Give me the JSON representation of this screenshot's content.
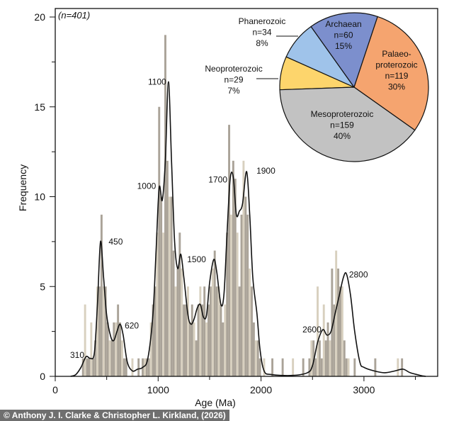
{
  "chart_data": [
    {
      "type": "bar",
      "subtype": "histogram with density curve",
      "annotation": "(n=401)",
      "xlabel": "Age (Ma)",
      "ylabel": "Frequency",
      "xlim": [
        0,
        3700
      ],
      "ylim": [
        0,
        20
      ],
      "xticks": [
        "0",
        "1000",
        "2000",
        "3000"
      ],
      "yticks": [
        "0",
        "5",
        "10",
        "15",
        "20"
      ],
      "grid": false,
      "bin_width": 20,
      "bins": [
        [
          260,
          1
        ],
        [
          280,
          4
        ],
        [
          300,
          1
        ],
        [
          320,
          1
        ],
        [
          340,
          3
        ],
        [
          360,
          1
        ],
        [
          380,
          2
        ],
        [
          400,
          5
        ],
        [
          420,
          5
        ],
        [
          440,
          9
        ],
        [
          460,
          5
        ],
        [
          480,
          5
        ],
        [
          500,
          3
        ],
        [
          520,
          2
        ],
        [
          540,
          2
        ],
        [
          560,
          3
        ],
        [
          580,
          3
        ],
        [
          600,
          4
        ],
        [
          620,
          3
        ],
        [
          640,
          2
        ],
        [
          660,
          1
        ],
        [
          680,
          1
        ],
        [
          740,
          1
        ],
        [
          800,
          1
        ],
        [
          840,
          1
        ],
        [
          860,
          1
        ],
        [
          880,
          1
        ],
        [
          900,
          1
        ],
        [
          920,
          3
        ],
        [
          940,
          4
        ],
        [
          960,
          5
        ],
        [
          980,
          8
        ],
        [
          1000,
          15
        ],
        [
          1020,
          10
        ],
        [
          1040,
          8
        ],
        [
          1060,
          19
        ],
        [
          1080,
          12
        ],
        [
          1100,
          10
        ],
        [
          1120,
          10
        ],
        [
          1140,
          7
        ],
        [
          1160,
          5
        ],
        [
          1180,
          6
        ],
        [
          1200,
          8
        ],
        [
          1220,
          6
        ],
        [
          1240,
          4
        ],
        [
          1260,
          4
        ],
        [
          1280,
          5
        ],
        [
          1300,
          3
        ],
        [
          1320,
          4
        ],
        [
          1340,
          3
        ],
        [
          1360,
          2
        ],
        [
          1380,
          4
        ],
        [
          1400,
          5
        ],
        [
          1420,
          4
        ],
        [
          1440,
          5
        ],
        [
          1460,
          3
        ],
        [
          1480,
          4
        ],
        [
          1500,
          5
        ],
        [
          1520,
          6
        ],
        [
          1540,
          7
        ],
        [
          1560,
          5
        ],
        [
          1580,
          5
        ],
        [
          1600,
          4
        ],
        [
          1620,
          3
        ],
        [
          1640,
          4
        ],
        [
          1660,
          8
        ],
        [
          1680,
          14
        ],
        [
          1700,
          9
        ],
        [
          1720,
          12
        ],
        [
          1740,
          11
        ],
        [
          1760,
          8
        ],
        [
          1780,
          5
        ],
        [
          1800,
          9
        ],
        [
          1820,
          12
        ],
        [
          1840,
          10
        ],
        [
          1860,
          9
        ],
        [
          1880,
          6
        ],
        [
          1900,
          5
        ],
        [
          1920,
          3
        ],
        [
          1940,
          2
        ],
        [
          1960,
          2
        ],
        [
          1980,
          1
        ],
        [
          2020,
          1
        ],
        [
          2100,
          1
        ],
        [
          2200,
          1
        ],
        [
          2300,
          1
        ],
        [
          2400,
          1
        ],
        [
          2460,
          1
        ],
        [
          2480,
          2
        ],
        [
          2500,
          2
        ],
        [
          2520,
          1
        ],
        [
          2540,
          5
        ],
        [
          2560,
          2
        ],
        [
          2580,
          1
        ],
        [
          2600,
          4
        ],
        [
          2620,
          2
        ],
        [
          2640,
          3
        ],
        [
          2660,
          2
        ],
        [
          2680,
          6
        ],
        [
          2700,
          4
        ],
        [
          2720,
          7
        ],
        [
          2740,
          6
        ],
        [
          2760,
          5
        ],
        [
          2780,
          5
        ],
        [
          2800,
          2
        ],
        [
          2820,
          1
        ],
        [
          2840,
          1
        ],
        [
          2900,
          1
        ],
        [
          3100,
          1
        ],
        [
          3320,
          1
        ],
        [
          3360,
          1
        ]
      ],
      "density_curve": [
        [
          150,
          0
        ],
        [
          200,
          0.1
        ],
        [
          250,
          0.5
        ],
        [
          300,
          1.1
        ],
        [
          340,
          1.0
        ],
        [
          380,
          1.3
        ],
        [
          410,
          4
        ],
        [
          440,
          7.5
        ],
        [
          470,
          5.5
        ],
        [
          500,
          3.4
        ],
        [
          540,
          2.2
        ],
        [
          570,
          2.0
        ],
        [
          600,
          2.5
        ],
        [
          630,
          2.9
        ],
        [
          660,
          2.3
        ],
        [
          700,
          0.8
        ],
        [
          750,
          0.3
        ],
        [
          800,
          0.4
        ],
        [
          850,
          0.5
        ],
        [
          900,
          1.0
        ],
        [
          950,
          3.5
        ],
        [
          980,
          7
        ],
        [
          1010,
          10.5
        ],
        [
          1040,
          9.8
        ],
        [
          1070,
          12
        ],
        [
          1100,
          16.4
        ],
        [
          1130,
          12
        ],
        [
          1160,
          7.5
        ],
        [
          1190,
          6
        ],
        [
          1220,
          6.8
        ],
        [
          1250,
          5.5
        ],
        [
          1290,
          3.4
        ],
        [
          1320,
          2.9
        ],
        [
          1350,
          3.2
        ],
        [
          1380,
          3.8
        ],
        [
          1410,
          4.0
        ],
        [
          1440,
          3.3
        ],
        [
          1470,
          3.4
        ],
        [
          1500,
          5.2
        ],
        [
          1540,
          6.5
        ],
        [
          1570,
          5.8
        ],
        [
          1610,
          4.0
        ],
        [
          1640,
          4.6
        ],
        [
          1670,
          8
        ],
        [
          1700,
          11.0
        ],
        [
          1730,
          11.1
        ],
        [
          1760,
          9.0
        ],
        [
          1790,
          9.2
        ],
        [
          1820,
          9.6
        ],
        [
          1860,
          11.4
        ],
        [
          1890,
          9
        ],
        [
          1920,
          5.5
        ],
        [
          1960,
          3.5
        ],
        [
          1990,
          1.5
        ],
        [
          2030,
          0.3
        ],
        [
          2100,
          0.1
        ],
        [
          2300,
          0.05
        ],
        [
          2450,
          0.2
        ],
        [
          2500,
          0.6
        ],
        [
          2550,
          1.9
        ],
        [
          2600,
          2.6
        ],
        [
          2640,
          2.3
        ],
        [
          2680,
          2.5
        ],
        [
          2720,
          3.5
        ],
        [
          2760,
          4.5
        ],
        [
          2800,
          5.5
        ],
        [
          2830,
          5.7
        ],
        [
          2870,
          4.5
        ],
        [
          2910,
          2.5
        ],
        [
          2960,
          0.8
        ],
        [
          3000,
          0.5
        ],
        [
          3100,
          0.3
        ],
        [
          3200,
          0.2
        ],
        [
          3300,
          0.3
        ],
        [
          3380,
          0.4
        ],
        [
          3450,
          0.2
        ],
        [
          3550,
          0.05
        ],
        [
          3600,
          0
        ]
      ],
      "peak_labels": [
        {
          "text": "310",
          "age": 310,
          "freq": 1.1
        },
        {
          "text": "450",
          "age": 450,
          "freq": 7.5
        },
        {
          "text": "620",
          "age": 620,
          "freq": 2.9
        },
        {
          "text": "1000",
          "age": 1000,
          "freq": 10.6
        },
        {
          "text": "1100",
          "age": 1100,
          "freq": 16.4
        },
        {
          "text": "1500",
          "age": 1500,
          "freq": 6.5
        },
        {
          "text": "1700",
          "age": 1700,
          "freq": 11.1
        },
        {
          "text": "1900",
          "age": 1900,
          "freq": 11.4
        },
        {
          "text": "2600",
          "age": 2600,
          "freq": 2.6
        },
        {
          "text": "2800",
          "age": 2800,
          "freq": 5.7
        }
      ],
      "colors": {
        "bar_dark": "#aaa398",
        "bar_light": "#d8d0bf",
        "curve": "#111111"
      }
    },
    {
      "type": "pie",
      "slices": [
        {
          "name": "Neoproterozoic",
          "n": "n=29",
          "pct": "7%",
          "value": 29,
          "color": "#fdd56c"
        },
        {
          "name": "Phanerozoic",
          "n": "n=34",
          "pct": "8%",
          "value": 34,
          "color": "#9fc3ea"
        },
        {
          "name": "Archaean",
          "n": "n=60",
          "pct": "15%",
          "value": 60,
          "color": "#7c8fcd"
        },
        {
          "name": "Palaeo-\nproterozoic",
          "n": "n=119",
          "pct": "30%",
          "value": 119,
          "color": "#f5a46f"
        },
        {
          "name": "Mesoproterozoic",
          "n": "n=159",
          "pct": "40%",
          "value": 159,
          "color": "#c2c2c2"
        }
      ]
    }
  ],
  "credit": "© Anthony J. I. Clarke & Christopher L. Kirkland, (2026)"
}
